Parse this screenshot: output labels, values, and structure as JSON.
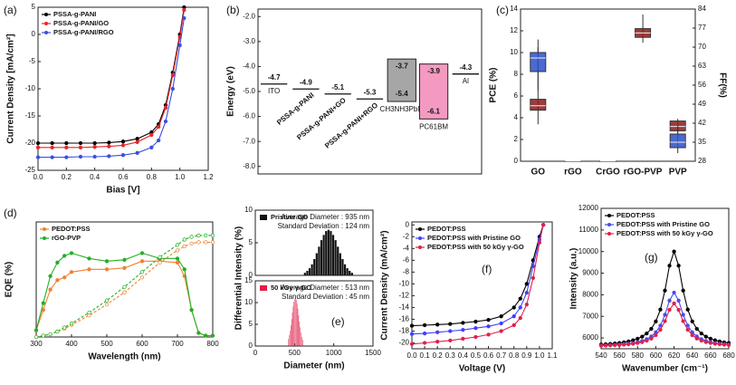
{
  "chart_data": [
    {
      "type": "line",
      "label": "(a)",
      "xlabel": "Bias [V]",
      "ylabel": "Current Density [mA/cm²]",
      "legend": "upper left",
      "markers": true,
      "xlim": [
        0,
        1.2
      ],
      "xticks": [
        {
          "value": 0,
          "label": "0.0"
        },
        0.2,
        0.4,
        0.6,
        0.8,
        {
          "value": 1,
          "label": "1.0"
        },
        1.2
      ],
      "ylim": [
        -25,
        5
      ],
      "yticks": [
        -25,
        -20,
        -15,
        -10,
        -5,
        0,
        5
      ],
      "x": [
        0,
        0.1,
        0.2,
        0.3,
        0.4,
        0.5,
        0.6,
        0.7,
        0.8,
        0.85,
        0.9,
        0.95,
        1.0,
        1.03
      ],
      "series": [
        {
          "name": "PSSA-g-PANI",
          "color": "#000000",
          "values": [
            -20,
            -20,
            -20,
            -20,
            -20,
            -19.9,
            -19.7,
            -19.2,
            -18,
            -16.5,
            -13,
            -7,
            0,
            5
          ]
        },
        {
          "name": "PSSA-g-PANI/GO",
          "color": "#e8262a",
          "values": [
            -20.8,
            -20.8,
            -20.8,
            -20.8,
            -20.7,
            -20.6,
            -20.4,
            -19.8,
            -18.5,
            -17,
            -13.5,
            -7.5,
            -0.5,
            4.5
          ]
        },
        {
          "name": "PSSA-g-PANI/RGO",
          "color": "#3b4fe0",
          "values": [
            -22.6,
            -22.6,
            -22.6,
            -22.5,
            -22.5,
            -22.4,
            -22.2,
            -21.8,
            -20.8,
            -19.5,
            -16,
            -10,
            -2,
            3
          ]
        }
      ]
    },
    {
      "type": "energy",
      "label": "(b)",
      "ylabel": "Energy (eV)",
      "ylim": [
        -8.3,
        -1.7
      ],
      "yticks": [
        {
          "value": -2,
          "label": "-2.0"
        },
        {
          "value": -3,
          "label": "-3.0"
        },
        {
          "value": -4,
          "label": "-4.0"
        },
        {
          "value": -5,
          "label": "-5.0"
        },
        {
          "value": -6,
          "label": "-6.0"
        },
        {
          "value": -7,
          "label": "-7.0"
        },
        {
          "value": -8,
          "label": "-8.0"
        }
      ],
      "items": [
        {
          "name": "ITO",
          "values": [
            -4.7
          ]
        },
        {
          "name": "PSSA-g-PANI",
          "values": [
            -4.9
          ]
        },
        {
          "name": "PSSA-g-PANI+GO",
          "values": [
            -5.1
          ]
        },
        {
          "name": "PSSA-g-PANI+RGO",
          "values": [
            -5.3
          ]
        },
        {
          "name": "CH3NH3PbI3",
          "values": [
            -3.7,
            -5.4
          ],
          "color": "#a6a6a6"
        },
        {
          "name": "PC61BM",
          "values": [
            -3.9,
            -6.1
          ],
          "color": "#f49ac1"
        },
        {
          "name": "Al",
          "values": [
            -4.3
          ]
        }
      ]
    },
    {
      "type": "box",
      "label": "(c)",
      "ylabel": "PCE (%)",
      "y2label": "FF(%)",
      "categories": [
        "GO",
        "rGO",
        "CrGO",
        "rGO-PVP",
        "PVP"
      ],
      "ylim": [
        0,
        14
      ],
      "yticks": [
        0,
        2,
        4,
        6,
        8,
        10,
        12,
        14
      ],
      "y2lim": [
        28,
        84
      ],
      "y2ticks": [
        28,
        35,
        42,
        49,
        56,
        63,
        70,
        77,
        84
      ],
      "series": [
        {
          "color": "#8b1a1a",
          "axis": "y",
          "boxes": [
            [
              3.4,
              4.7,
              5.1,
              5.7,
              11.2
            ],
            [
              0,
              0,
              0,
              0,
              0
            ],
            [
              0,
              0,
              0,
              0,
              0
            ],
            [
              10.9,
              11.4,
              11.8,
              12.2,
              13.5
            ],
            [
              2.6,
              2.8,
              3.2,
              3.7,
              3.9
            ]
          ]
        },
        {
          "color": "#2b50c8",
          "axis": "y2",
          "boxes": [
            [
              54,
              61,
              66,
              68,
              70
            ],
            null,
            null,
            null,
            [
              31,
              33,
              35,
              38,
              41
            ]
          ]
        }
      ]
    },
    {
      "type": "line",
      "label": "(d)",
      "xlabel": "Wavelength (nm)",
      "ylabel": "EQE (%)",
      "legend": "upper left",
      "markers": true,
      "xlim": [
        300,
        800
      ],
      "xticks": [
        300,
        400,
        500,
        600,
        700,
        800
      ],
      "ylim": [
        0,
        85
      ],
      "x": [
        300,
        320,
        340,
        360,
        380,
        400,
        450,
        500,
        550,
        600,
        650,
        700,
        720,
        740,
        760,
        780,
        800
      ],
      "series": [
        {
          "name": "PEDOT:PSS",
          "color": "#f08030",
          "values": [
            5,
            20,
            35,
            42,
            44,
            48,
            50,
            50,
            51,
            56,
            56,
            55,
            45,
            20,
            3,
            1,
            1
          ]
        },
        {
          "name": "rGO-PVP",
          "color": "#22b022",
          "values": [
            5,
            25,
            45,
            55,
            60,
            62,
            58,
            56,
            57,
            62,
            58,
            58,
            50,
            20,
            3,
            1,
            1
          ]
        },
        {
          "color": "#f08030",
          "dashed": true,
          "values": [
            0,
            1,
            2,
            4,
            6,
            9,
            16,
            24,
            33,
            44,
            55,
            64,
            67,
            69,
            70,
            70,
            70
          ]
        },
        {
          "color": "#22b022",
          "dashed": true,
          "values": [
            0,
            1,
            2,
            4,
            7,
            10,
            18,
            27,
            37,
            48,
            59,
            68,
            72,
            74,
            75,
            75,
            75
          ]
        }
      ]
    },
    {
      "type": "histogram",
      "ylabel": "Differential Intensity (%)",
      "legend": "upper left",
      "annotations": [
        "Average Diameter : 935 nm",
        "Standard Deviation : 124 nm"
      ],
      "xlim": [
        0,
        1500
      ],
      "ylim": [
        0,
        10
      ],
      "yticks": [
        0,
        5,
        10
      ],
      "series": [
        {
          "name": "Pristine GO",
          "color": "#111111",
          "bins": [
            620,
            650,
            680,
            710,
            740,
            770,
            800,
            830,
            860,
            890,
            920,
            950,
            980,
            1010,
            1040,
            1070,
            1100,
            1130,
            1160,
            1190,
            1220,
            1250
          ],
          "values": [
            0.4,
            0.7,
            1.1,
            1.7,
            2.5,
            3.4,
            4.4,
            5.4,
            6.2,
            6.8,
            7,
            6.8,
            6.2,
            5.4,
            4.4,
            3.4,
            2.5,
            1.7,
            1.1,
            0.7,
            0.4
          ]
        }
      ]
    },
    {
      "type": "histogram",
      "label": "(e)",
      "xlabel": "Diameter (nm)",
      "legend": "upper left",
      "annotations": [
        "Average Diameter : 513 nm",
        "Standard Deviation : 45 nm"
      ],
      "xlim": [
        0,
        1500
      ],
      "xticks": [
        0,
        500,
        1000,
        1500
      ],
      "ylim": [
        0,
        15
      ],
      "yticks": [
        0,
        5,
        10,
        15
      ],
      "series": [
        {
          "name": "50 kGy γ-GO",
          "color": "#e0204a",
          "bins": [
            420,
            430,
            440,
            450,
            460,
            470,
            480,
            490,
            500,
            510,
            520,
            530,
            540,
            550,
            560,
            570,
            580,
            590,
            600,
            610
          ],
          "values": [
            1.6,
            2.5,
            3.5,
            4.8,
            6.2,
            7.7,
            9.1,
            10.2,
            10.8,
            11,
            10.6,
            9.8,
            8.6,
            7.1,
            5.6,
            4.3,
            3.1,
            2.1,
            1.4
          ]
        }
      ]
    },
    {
      "type": "line",
      "label": "(f)",
      "xlabel": "Voltage (V)",
      "ylabel": "Current Density (mA/cm²)",
      "legend": "upper left",
      "markers": true,
      "xlim": [
        0,
        1.1
      ],
      "xticks": [
        {
          "value": 0,
          "label": "0.0"
        },
        0.1,
        0.2,
        0.3,
        0.4,
        0.5,
        0.6,
        0.7,
        0.8,
        0.9,
        {
          "value": 1,
          "label": "1.0"
        },
        1.1
      ],
      "ylim": [
        -21,
        0.5
      ],
      "yticks": [
        -20,
        -18,
        -16,
        -14,
        -12,
        -10,
        -8,
        -6,
        -4,
        -2,
        0
      ],
      "x": [
        0,
        0.1,
        0.2,
        0.3,
        0.4,
        0.5,
        0.6,
        0.7,
        0.8,
        0.85,
        0.9,
        0.95,
        1.0,
        1.03
      ],
      "series": [
        {
          "name": "PEDOT:PSS",
          "color": "#000000",
          "values": [
            -17.1,
            -17,
            -16.9,
            -16.8,
            -16.6,
            -16.4,
            -16.1,
            -15.5,
            -14,
            -12.5,
            -10,
            -6,
            -2,
            0
          ]
        },
        {
          "name": "PEDOT:PSS with Pristine GO",
          "color": "#4040ff",
          "values": [
            -18.5,
            -18.4,
            -18.2,
            -18,
            -17.8,
            -17.5,
            -17.2,
            -16.7,
            -15.5,
            -14,
            -11.5,
            -7,
            -2.5,
            0
          ]
        },
        {
          "name": "PEDOT:PSS with 50 kGy γ-GO",
          "color": "#e0204a",
          "values": [
            -20.2,
            -20,
            -19.8,
            -19.6,
            -19.3,
            -19,
            -18.6,
            -18,
            -17,
            -15.8,
            -13.5,
            -9,
            -3,
            0
          ]
        }
      ]
    },
    {
      "type": "line",
      "label": "(g)",
      "xlabel": "Wavenumber (cm⁻¹)",
      "ylabel": "Intensity (a.u.)",
      "legend": "upper left",
      "markers": true,
      "xlim": [
        540,
        680
      ],
      "xticks": [
        540,
        560,
        580,
        600,
        620,
        640,
        660,
        680
      ],
      "ylim": [
        5500,
        12000
      ],
      "yticks": [
        6000,
        7000,
        8000,
        9000,
        10000,
        11000,
        12000
      ],
      "x": [
        540,
        545,
        550,
        555,
        560,
        565,
        570,
        575,
        580,
        585,
        590,
        595,
        600,
        605,
        610,
        615,
        620,
        625,
        630,
        635,
        640,
        645,
        650,
        655,
        660,
        665,
        670,
        675,
        680
      ],
      "series": [
        {
          "name": "PEDOT:PSS",
          "color": "#000000",
          "values": [
            5697,
            5710,
            5723,
            5745,
            5767,
            5798,
            5838,
            5890,
            5965,
            6062,
            6207,
            6423,
            6766,
            7316,
            8196,
            9349,
            10000,
            9349,
            8196,
            7316,
            6766,
            6423,
            6207,
            6062,
            5965,
            5890,
            5838,
            5798,
            5767
          ]
        },
        {
          "name": "PEDOT:PSS with Pristine GO",
          "color": "#4a4af0",
          "values": [
            5655,
            5663,
            5670,
            5683,
            5695,
            5713,
            5735,
            5765,
            5808,
            5863,
            5945,
            6068,
            6263,
            6575,
            7075,
            7730,
            8100,
            7730,
            7075,
            6575,
            6263,
            6068,
            5945,
            5863,
            5808,
            5765,
            5735,
            5713,
            5695
          ]
        },
        {
          "name": "PEDOT:PSS with 50 kGy γ-GO",
          "color": "#e0204a",
          "values": [
            5644,
            5650,
            5656,
            5666,
            5676,
            5690,
            5708,
            5732,
            5766,
            5810,
            5876,
            5974,
            6130,
            6380,
            6780,
            7304,
            7600,
            7304,
            6780,
            6380,
            6130,
            5974,
            5876,
            5810,
            5766,
            5732,
            5708,
            5690,
            5676
          ]
        }
      ]
    }
  ]
}
